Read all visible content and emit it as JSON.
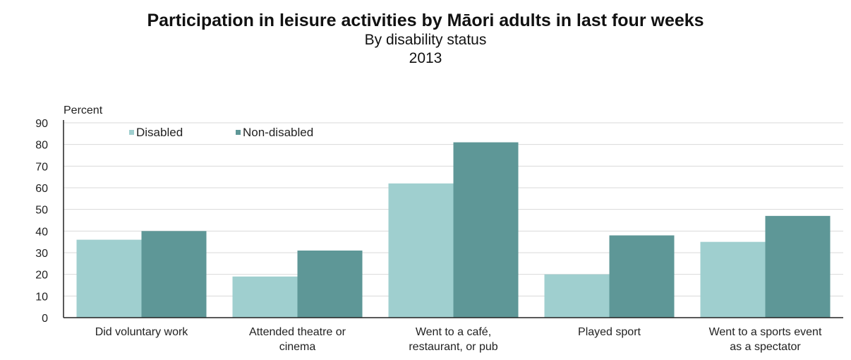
{
  "chart_data": {
    "type": "bar",
    "title": "Participation in leisure activities by Māori adults in last four weeks",
    "subtitle": "By disability status",
    "year": "2013",
    "ylabel": "Percent",
    "xlabel": "",
    "ylim": [
      0,
      90
    ],
    "yticks": [
      0,
      10,
      20,
      30,
      40,
      50,
      60,
      70,
      80,
      90
    ],
    "grid": true,
    "legend_position": "top-left",
    "categories": [
      [
        "Did voluntary work"
      ],
      [
        "Attended theatre or",
        "cinema"
      ],
      [
        "Went to a café,",
        "restaurant, or pub"
      ],
      [
        "Played sport"
      ],
      [
        "Went to a sports event",
        "as a spectator"
      ]
    ],
    "series": [
      {
        "name": "Disabled",
        "color": "#9fcfcf",
        "values": [
          36,
          19,
          62,
          20,
          35
        ]
      },
      {
        "name": "Non-disabled",
        "color": "#5e9797",
        "values": [
          40,
          31,
          81,
          38,
          47
        ]
      }
    ]
  }
}
